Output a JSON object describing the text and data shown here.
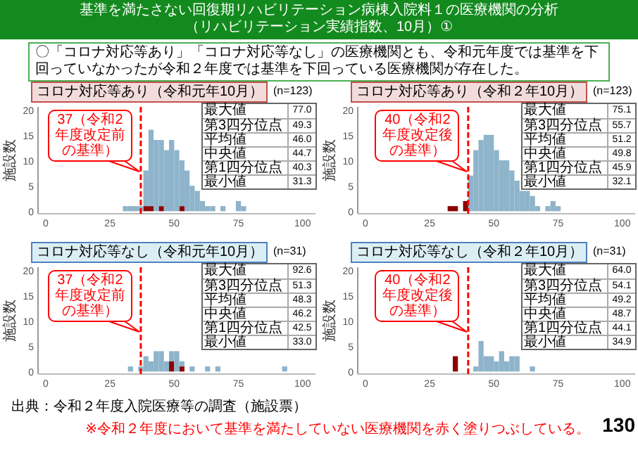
{
  "chart_data": [
    {
      "type": "other",
      "title": "基準を満たさない回復期リハビリテーション病棟入院料１の医療機関の分析（リハビリテーション実績指数、10月）①",
      "subtitle": "〇「コロナ対応等あり」「コロナ対応等なし」の医療機関とも、令和元年度では基準を下回っていなかったが令和２年度では基準を下回っている医療機関が存在した。",
      "annotations": [
        "出典：令和２年度入院医療等の調査（施設票）",
        "※令和２年度において基準を満たしていない医療機関を赤く塗りつぶしている。",
        "130"
      ]
    },
    {
      "type": "bar",
      "title": "コロナ対応等あり（令和元年10月）",
      "subtitle": "(n=123)",
      "ylabel": "施設数",
      "stacked": true,
      "x": [
        31,
        33,
        35,
        37,
        39,
        41,
        43,
        45,
        47,
        49,
        51,
        53,
        55,
        57,
        59,
        61,
        63,
        65,
        67,
        69,
        71,
        73,
        75,
        77
      ],
      "series": [
        {
          "color": "#8b0000",
          "values": [
            null,
            null,
            null,
            null,
            1,
            1,
            null,
            1,
            null,
            null,
            null,
            1,
            null,
            null,
            null,
            null,
            null,
            null,
            null,
            null,
            null,
            null,
            null,
            null
          ]
        },
        {
          "color": "#8eb4cb",
          "values": [
            1,
            1,
            1,
            1,
            7,
            15,
            14,
            13,
            12,
            14,
            12,
            9,
            8,
            5,
            4,
            2,
            1,
            1,
            0,
            1,
            0,
            0,
            2,
            1
          ]
        }
      ],
      "xlim": [
        -3,
        105
      ],
      "xticks": [
        0,
        25,
        50,
        75,
        100
      ],
      "ylim": [
        -0.5,
        20.5
      ],
      "yticks": [
        0,
        5,
        10,
        15,
        20
      ],
      "ref_lines": [
        {
          "axis": "x",
          "value": 37,
          "label": "37（令和2年度改定前の基準）",
          "color": "#ff0000",
          "line_style": "dashed"
        }
      ],
      "annotations": [
        "最大値\t77.0",
        "第3四分位点\t49.3",
        "平均値\t46.0",
        "中央値\t44.7",
        "第1四分位点\t40.3",
        "最小値\t31.3"
      ]
    },
    {
      "type": "bar",
      "title": "コロナ対応等あり（令和２年10月）",
      "subtitle": "(n=123)",
      "ylabel": "施設数",
      "stacked": true,
      "x": [
        33,
        35,
        37,
        39,
        41,
        43,
        45,
        47,
        49,
        51,
        53,
        55,
        57,
        59,
        61,
        63,
        65,
        67,
        69,
        71,
        73,
        75
      ],
      "series": [
        {
          "color": "#8b0000",
          "values": [
            1,
            1,
            null,
            2,
            null,
            null,
            null,
            null,
            null,
            null,
            null,
            null,
            null,
            null,
            null,
            null,
            null,
            null,
            null,
            null,
            null,
            null
          ]
        },
        {
          "color": "#8eb4cb",
          "values": [
            0,
            0,
            0,
            0,
            7,
            12,
            14,
            15,
            15,
            12,
            10,
            10,
            8,
            6,
            4,
            4,
            3,
            1,
            0,
            1,
            2,
            1
          ]
        }
      ],
      "xlim": [
        -3,
        105
      ],
      "xticks": [
        0,
        25,
        50,
        75,
        100
      ],
      "ylim": [
        -0.5,
        20.5
      ],
      "yticks": [
        0,
        5,
        10,
        15,
        20
      ],
      "ref_lines": [
        {
          "axis": "x",
          "value": 40,
          "label": "40（令和2年度改定後の基準）",
          "color": "#ff0000",
          "line_style": "dashed"
        }
      ],
      "annotations": [
        "最大値\t75.1",
        "第3四分位点\t55.7",
        "平均値\t51.2",
        "中央値\t49.8",
        "第1四分位点\t45.9",
        "最小値\t32.1"
      ]
    },
    {
      "type": "bar",
      "title": "コロナ対応等なし（令和元年10月）",
      "subtitle": "(n=31)",
      "ylabel": "施設数",
      "stacked": true,
      "x": [
        33,
        35,
        37,
        39,
        41,
        43,
        45,
        47,
        49,
        51,
        53,
        55,
        57,
        59,
        61,
        63,
        65,
        67,
        69,
        71,
        73,
        75,
        77,
        79,
        81,
        83,
        85,
        87,
        89,
        91,
        93
      ],
      "series": [
        {
          "color": "#8b0000",
          "values": [
            null,
            null,
            null,
            null,
            null,
            null,
            null,
            null,
            2,
            null,
            1,
            null,
            null,
            null,
            null,
            null,
            null,
            null,
            null,
            null,
            null,
            null,
            null,
            null,
            null,
            null,
            null,
            null,
            null,
            null,
            null
          ]
        },
        {
          "color": "#8eb4cb",
          "values": [
            1,
            0,
            1,
            3,
            2,
            4,
            4,
            2,
            2,
            4,
            1,
            0,
            1,
            0,
            0,
            1,
            0,
            1,
            0,
            0,
            0,
            0,
            0,
            0,
            0,
            0,
            0,
            0,
            0,
            0,
            1
          ]
        }
      ],
      "xlim": [
        -3,
        105
      ],
      "xticks": [
        0,
        25,
        50,
        75,
        100
      ],
      "ylim": [
        -0.5,
        20.5
      ],
      "yticks": [
        0,
        5,
        10,
        15,
        20
      ],
      "ref_lines": [
        {
          "axis": "x",
          "value": 37,
          "label": "37（令和2年度改定前の基準）",
          "color": "#ff0000",
          "line_style": "dashed"
        }
      ],
      "annotations": [
        "最大値\t92.6",
        "第3四分位点\t51.3",
        "平均値\t48.3",
        "中央値\t46.2",
        "第1四分位点\t42.5",
        "最小値\t33.0"
      ]
    },
    {
      "type": "bar",
      "title": "コロナ対応等なし（令和２年10月）",
      "subtitle": "(n=31)",
      "ylabel": "施設数",
      "stacked": true,
      "x": [
        35,
        37,
        39,
        41,
        43,
        45,
        47,
        49,
        51,
        53,
        55,
        57,
        59,
        61,
        63,
        65
      ],
      "series": [
        {
          "color": "#8b0000",
          "values": [
            3,
            null,
            null,
            null,
            null,
            null,
            null,
            null,
            null,
            null,
            null,
            null,
            null,
            null,
            null,
            null
          ]
        },
        {
          "color": "#8eb4cb",
          "values": [
            0,
            0,
            0,
            0,
            1,
            6,
            3,
            3,
            2,
            4,
            2,
            3,
            3,
            0,
            0,
            1
          ]
        }
      ],
      "xlim": [
        -3,
        105
      ],
      "xticks": [
        0,
        25,
        50,
        75,
        100
      ],
      "ylim": [
        -0.5,
        20.5
      ],
      "yticks": [
        0,
        5,
        10,
        15,
        20
      ],
      "ref_lines": [
        {
          "axis": "x",
          "value": 40,
          "label": "40（令和2年度改定後の基準）",
          "color": "#ff0000",
          "line_style": "dashed"
        }
      ],
      "annotations": [
        "最大値\t64.0",
        "第3四分位点\t54.1",
        "平均値\t49.2",
        "中央値\t48.7",
        "第1四分位点\t44.1",
        "最小値\t34.9"
      ]
    }
  ]
}
